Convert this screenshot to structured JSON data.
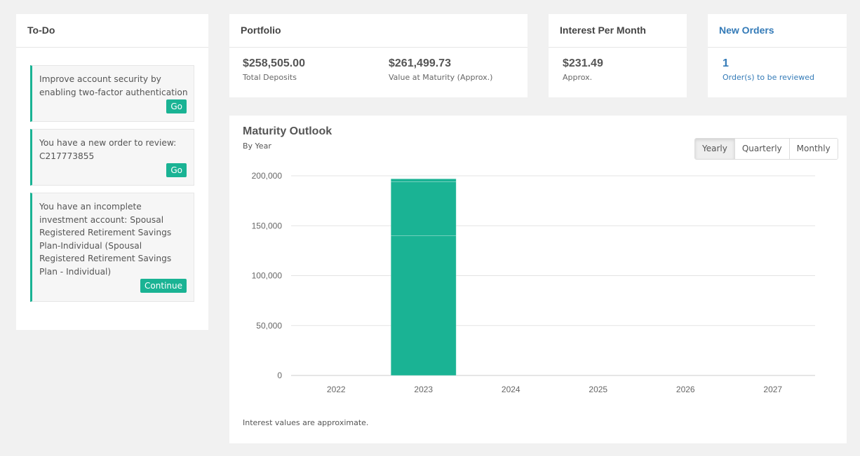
{
  "todo": {
    "title": "To-Do",
    "items": [
      {
        "text": "Improve account security by enabling two-factor authentication",
        "button": "Go"
      },
      {
        "text": "You have a new order to review: C217773855",
        "button": "Go"
      },
      {
        "text": "You have an incomplete investment account: Spousal Registered Retirement Savings Plan-Individual (Spousal Registered Retirement Savings Plan - Individual)",
        "button": "Continue"
      }
    ]
  },
  "portfolio": {
    "title": "Portfolio",
    "total_deposits_value": "$258,505.00",
    "total_deposits_label": "Total Deposits",
    "maturity_value": "$261,499.73",
    "maturity_label": "Value at Maturity (Approx.)"
  },
  "interest": {
    "title": "Interest Per Month",
    "value": "$231.49",
    "label": "Approx."
  },
  "orders": {
    "title": "New Orders",
    "count": "1",
    "label": "Order(s) to be reviewed"
  },
  "outlook": {
    "title": "Maturity Outlook",
    "subtitle": "By Year",
    "toggles": [
      "Yearly",
      "Quarterly",
      "Monthly"
    ],
    "active_toggle": "Yearly",
    "footnote": "Interest values are approximate."
  },
  "chart_data": {
    "type": "bar",
    "stacked": true,
    "categories": [
      "2022",
      "2023",
      "2024",
      "2025",
      "2026",
      "2027"
    ],
    "series": [
      {
        "values": [
          0,
          140000,
          0,
          0,
          0,
          0
        ]
      },
      {
        "values": [
          0,
          54000,
          0,
          0,
          0,
          0
        ]
      },
      {
        "values": [
          0,
          3000,
          0,
          0,
          0,
          0
        ]
      }
    ],
    "ylim": [
      0,
      200000
    ],
    "yticks": [
      0,
      50000,
      100000,
      150000,
      200000
    ],
    "ytick_labels": [
      "0",
      "50,000",
      "100,000",
      "150,000",
      "200,000"
    ],
    "grid": true,
    "bar_color": "#1ab394"
  }
}
